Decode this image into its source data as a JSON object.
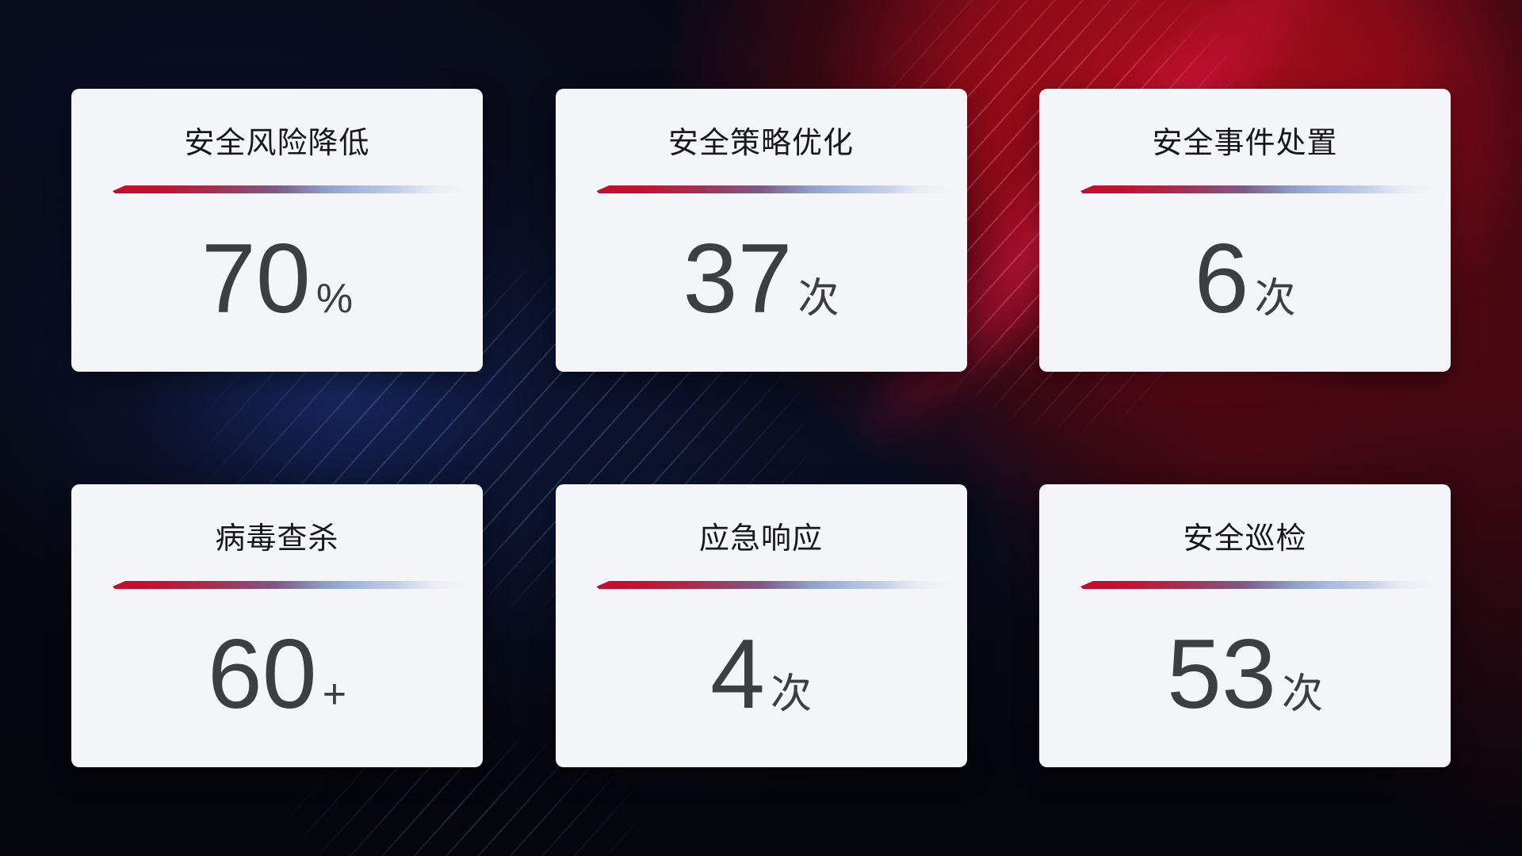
{
  "cards": [
    {
      "label": "安全风险降低",
      "value": "70",
      "unit": "%"
    },
    {
      "label": "安全策略优化",
      "value": "37",
      "unit": "次"
    },
    {
      "label": "安全事件处置",
      "value": "6",
      "unit": "次"
    },
    {
      "label": "病毒查杀",
      "value": "60",
      "unit": "+"
    },
    {
      "label": "应急响应",
      "value": "4",
      "unit": "次"
    },
    {
      "label": "安全巡检",
      "value": "53",
      "unit": "次"
    }
  ],
  "colors": {
    "card_bg": "#f4f5f9",
    "title_color": "#17181c",
    "value_color": "#3d3e42",
    "divider_red": "#c40e2f",
    "divider_blue": "#a9bade",
    "bg_base": "#05060c",
    "bg_navy_glow": "#172964",
    "bg_red_glow": "#a00d1c"
  }
}
